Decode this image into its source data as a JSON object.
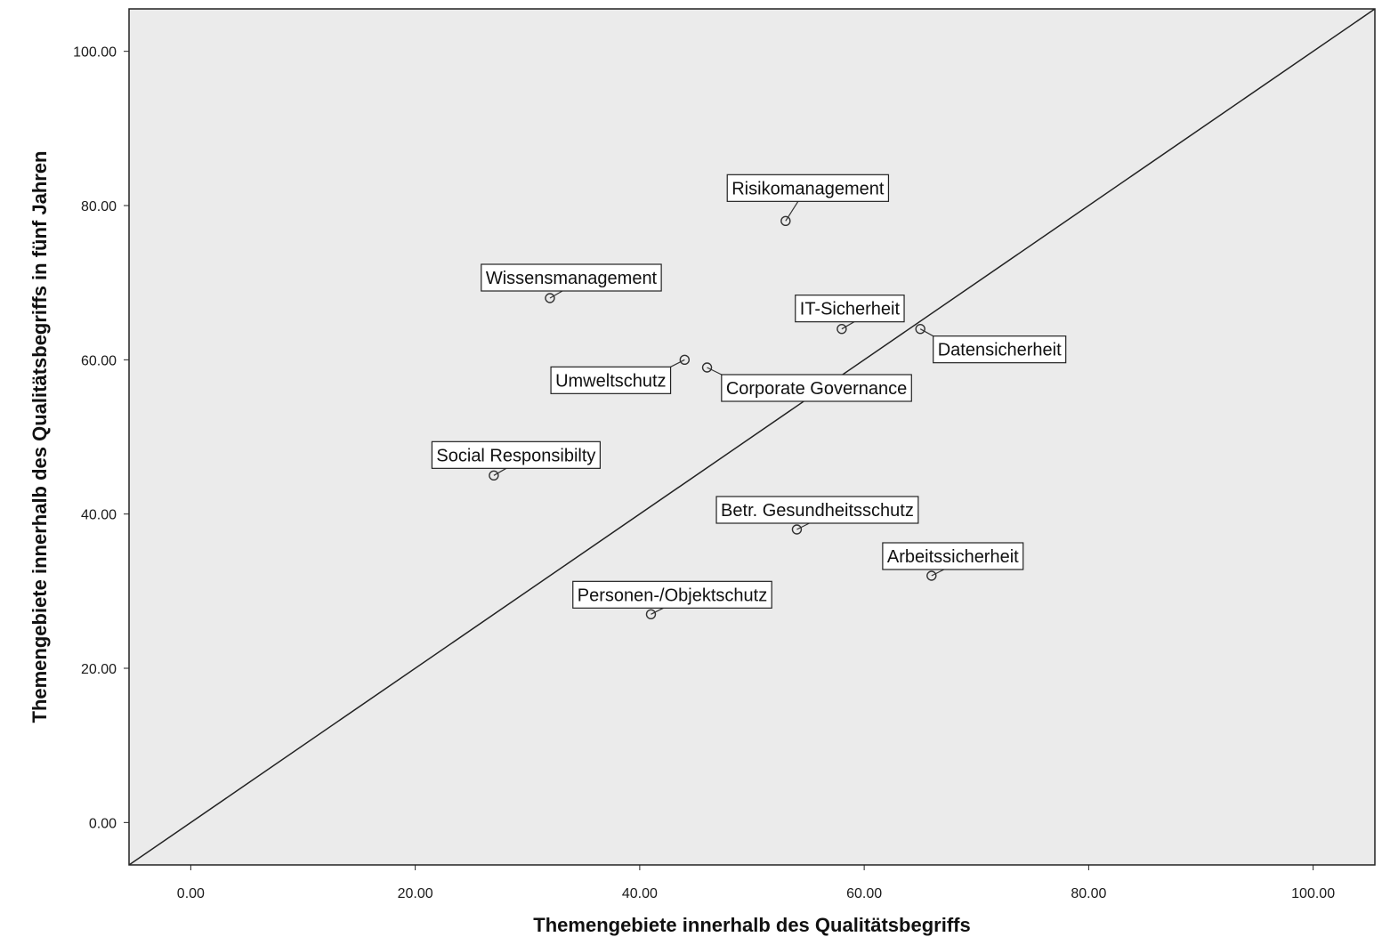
{
  "chart_data": {
    "type": "scatter",
    "xlabel": "Themengebiete innerhalb des Qualitätsbegriffs",
    "ylabel": "Themengebiete innerhalb des Qualitätsbegriffs in fünf Jahren",
    "xlim": [
      -5.5,
      105.5
    ],
    "ylim": [
      -5.5,
      105.5
    ],
    "xticks": [
      0,
      20,
      40,
      60,
      80,
      100
    ],
    "yticks": [
      0,
      20,
      40,
      60,
      80,
      100
    ],
    "xtick_labels": [
      "0.00",
      "20.00",
      "40.00",
      "60.00",
      "80.00",
      "100.00"
    ],
    "ytick_labels": [
      "0.00",
      "20.00",
      "40.00",
      "60.00",
      "80.00",
      "100.00"
    ],
    "grid": false,
    "reference_line": "y = x",
    "points": [
      {
        "label": "Risikomanagement",
        "x": 53,
        "y": 78
      },
      {
        "label": "Wissensmanagement",
        "x": 32,
        "y": 68
      },
      {
        "label": "IT-Sicherheit",
        "x": 58,
        "y": 64
      },
      {
        "label": "Datensicherheit",
        "x": 65,
        "y": 64
      },
      {
        "label": "Umweltschutz",
        "x": 44,
        "y": 60
      },
      {
        "label": "Corporate Governance",
        "x": 46,
        "y": 59
      },
      {
        "label": "Social Responsibilty",
        "x": 27,
        "y": 45
      },
      {
        "label": "Betr. Gesundheitsschutz",
        "x": 54,
        "y": 38
      },
      {
        "label": "Arbeitssicherheit",
        "x": 66,
        "y": 32
      },
      {
        "label": "Personen-/Objektschutz",
        "x": 41,
        "y": 27
      }
    ],
    "colors": {
      "plot_background": "#ebebeb",
      "marker": "#333333",
      "line": "#222222"
    }
  }
}
